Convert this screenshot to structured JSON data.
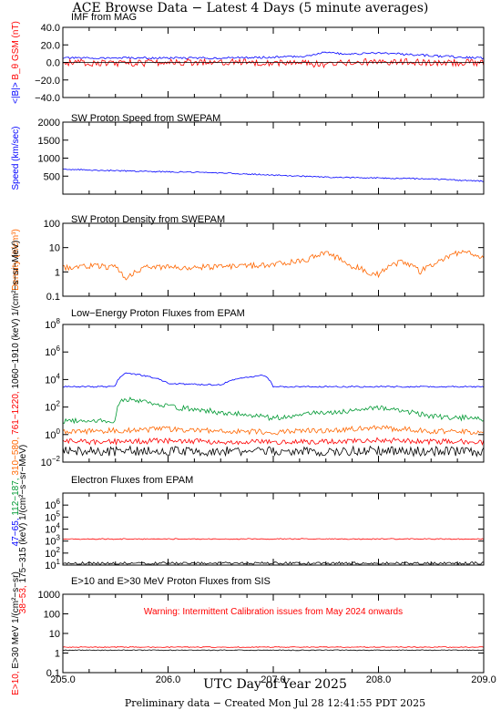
{
  "header": {
    "title": "ACE Browse Data − Latest 4 Days (5 minute averages)",
    "footer": "Preliminary data − Created Mon Jul 28 12:41:55 PDT 2025"
  },
  "colors": {
    "blue": "#0000ff",
    "red": "#ff0000",
    "green": "#009933",
    "orange": "#ff6600",
    "black": "#000000"
  },
  "chart_data": [
    {
      "type": "line",
      "title": "IMF from MAG",
      "ylim": [
        -40,
        40
      ],
      "yticks": [
        "40.0",
        "20.0",
        "0.0",
        "−20.0",
        "−40.0"
      ],
      "ylabel": [
        {
          "text": "<|B|>",
          "color": "blue"
        },
        {
          "text": "B_θ GSM (nT)",
          "color": "red"
        }
      ],
      "series": [
        {
          "color": "blue",
          "x": [
            205.0,
            205.5,
            206.0,
            206.5,
            207.0,
            207.3,
            207.5,
            207.7,
            208.0,
            208.3,
            208.6,
            209.0
          ],
          "y": [
            5,
            5,
            5,
            5,
            6,
            7,
            12,
            9,
            11,
            9,
            7,
            5
          ]
        },
        {
          "color": "red",
          "x": [
            205.0,
            205.5,
            206.0,
            206.5,
            207.0,
            207.5,
            208.0,
            208.5,
            209.0
          ],
          "y": [
            0,
            -1,
            0,
            1,
            0,
            -2,
            1,
            0,
            0
          ]
        }
      ]
    },
    {
      "type": "line",
      "title": "SW Proton Speed from SWEPAM",
      "ylim": [
        0,
        2000
      ],
      "yticks": [
        "2000",
        "1500",
        "1000",
        "500"
      ],
      "ylabel": [
        {
          "text": "Speed (km/sec)",
          "color": "blue"
        }
      ],
      "series": [
        {
          "color": "blue",
          "x": [
            205.0,
            205.25,
            205.5,
            206.0,
            206.5,
            207.0,
            207.5,
            208.0,
            208.5,
            209.0
          ],
          "y": [
            690,
            670,
            650,
            620,
            590,
            530,
            470,
            450,
            420,
            360
          ]
        }
      ]
    },
    {
      "type": "line",
      "title": "SW Proton Density from SWEPAM",
      "yscale": "log",
      "ylim": [
        0.1,
        100
      ],
      "yticks": [
        "100",
        "10",
        "1",
        "0.1"
      ],
      "ylabel": [
        {
          "text": "Density (#/cm³)",
          "color": "orange"
        }
      ],
      "series": [
        {
          "color": "orange",
          "x": [
            205.0,
            205.3,
            205.5,
            205.6,
            205.8,
            206.0,
            206.2,
            206.5,
            206.8,
            207.0,
            207.3,
            207.5,
            207.7,
            207.9,
            208.0,
            208.2,
            208.4,
            208.6,
            208.8,
            209.0
          ],
          "y": [
            1.5,
            1.8,
            1.5,
            0.5,
            1.6,
            1.5,
            1.5,
            1.7,
            1.8,
            2.0,
            3.0,
            6.0,
            2.0,
            1.0,
            0.8,
            2.5,
            1.0,
            3.0,
            7.0,
            4.0
          ]
        }
      ]
    },
    {
      "type": "line",
      "title": "Low−Energy Proton Fluxes from EPAM",
      "yscale": "log",
      "ylim": [
        0.01,
        100000000
      ],
      "yticks": [
        "10^8",
        "10^6",
        "10^4",
        "10^2",
        "10^0",
        "10^−2"
      ],
      "ylabel": [
        {
          "text": "47−65,",
          "color": "blue"
        },
        {
          "text": "112−187,",
          "color": "green"
        },
        {
          "text": "310−580,",
          "color": "orange"
        },
        {
          "text": "761−1220,",
          "color": "red"
        },
        {
          "text": "1060−1910 (keV)",
          "color": "black"
        },
        {
          "text": "1/(cm²−s−sr−MeV)",
          "color": "black"
        }
      ],
      "series": [
        {
          "name": "47−65",
          "color": "blue",
          "x": [
            205.0,
            205.5,
            205.6,
            206.0,
            206.5,
            206.9,
            207.0,
            208.0,
            209.0
          ],
          "y": [
            3000,
            3000,
            30000,
            5000,
            4000,
            20000,
            3000,
            3000,
            3000
          ]
        },
        {
          "name": "112−187",
          "color": "green",
          "x": [
            205.0,
            205.5,
            205.6,
            206.0,
            206.5,
            207.0,
            207.5,
            208.0,
            208.5,
            209.0
          ],
          "y": [
            10,
            10,
            400,
            100,
            40,
            15,
            40,
            80,
            20,
            15
          ]
        },
        {
          "name": "310−580",
          "color": "orange",
          "x": [
            205.0,
            205.5,
            206.0,
            206.5,
            207.0,
            207.5,
            208.0,
            208.5,
            209.0
          ],
          "y": [
            1.5,
            2.0,
            2.5,
            1.8,
            1.5,
            2.0,
            3.0,
            1.8,
            1.5
          ]
        },
        {
          "name": "761−1220",
          "color": "red",
          "x": [
            205.0,
            205.5,
            206.0,
            206.5,
            207.0,
            207.5,
            208.0,
            208.5,
            209.0
          ],
          "y": [
            0.3,
            0.3,
            0.35,
            0.3,
            0.3,
            0.3,
            0.4,
            0.3,
            0.3
          ]
        },
        {
          "name": "1060−1910",
          "color": "black",
          "x": [
            205.0,
            205.5,
            206.0,
            206.5,
            207.0,
            207.5,
            208.0,
            208.5,
            209.0
          ],
          "y": [
            0.06,
            0.06,
            0.07,
            0.06,
            0.06,
            0.06,
            0.07,
            0.06,
            0.06
          ]
        }
      ]
    },
    {
      "type": "line",
      "title": "Electron Fluxes from EPAM",
      "yscale": "log",
      "ylim": [
        10,
        10000000
      ],
      "yticks": [
        "10^6",
        "10^5",
        "10^4",
        "10^3",
        "10^2",
        "10^1"
      ],
      "ylabel": [
        {
          "text": "38−53,",
          "color": "red"
        },
        {
          "text": "175−315 (keV)",
          "color": "black"
        },
        {
          "text": "1/(cm²−s−sr−MeV)",
          "color": "black"
        }
      ],
      "series": [
        {
          "name": "38−53",
          "color": "red",
          "x": [
            205.0,
            206.0,
            207.0,
            208.0,
            209.0
          ],
          "y": [
            1500,
            1500,
            1500,
            1500,
            1500
          ]
        },
        {
          "name": "175−315",
          "color": "black",
          "x": [
            205.0,
            206.0,
            207.0,
            208.0,
            209.0
          ],
          "y": [
            14,
            14,
            14,
            14,
            14
          ]
        }
      ]
    },
    {
      "type": "line",
      "title": "E>10 and E>30 MeV Proton Fluxes from SIS",
      "yscale": "log",
      "ylim": [
        0.1,
        1000
      ],
      "yticks": [
        "1000",
        "100",
        "10",
        "1",
        "0.1"
      ],
      "ylabel": [
        {
          "text": "E>10,",
          "color": "red"
        },
        {
          "text": "E>30 MeV",
          "color": "black"
        },
        {
          "text": "1/(cm²−s−sr)",
          "color": "black"
        }
      ],
      "annotation": "Warning: Intermittent Calibration issues from May 2024 onwards",
      "series": [
        {
          "name": "E>10",
          "color": "red",
          "x": [
            205.0,
            206.0,
            207.0,
            208.0,
            209.0
          ],
          "y": [
            2.0,
            2.0,
            2.0,
            2.0,
            2.0
          ]
        },
        {
          "name": "E>30",
          "color": "black",
          "x": [
            205.0,
            206.0,
            207.0,
            208.0,
            209.0
          ],
          "y": [
            1.4,
            1.4,
            1.4,
            1.4,
            1.4
          ]
        }
      ]
    }
  ],
  "x_axis": {
    "label": "UTC Day of Year 2025",
    "xlim": [
      205.0,
      209.0
    ],
    "ticks": [
      "205.0",
      "206.0",
      "207.0",
      "208.0",
      "209.0"
    ]
  }
}
